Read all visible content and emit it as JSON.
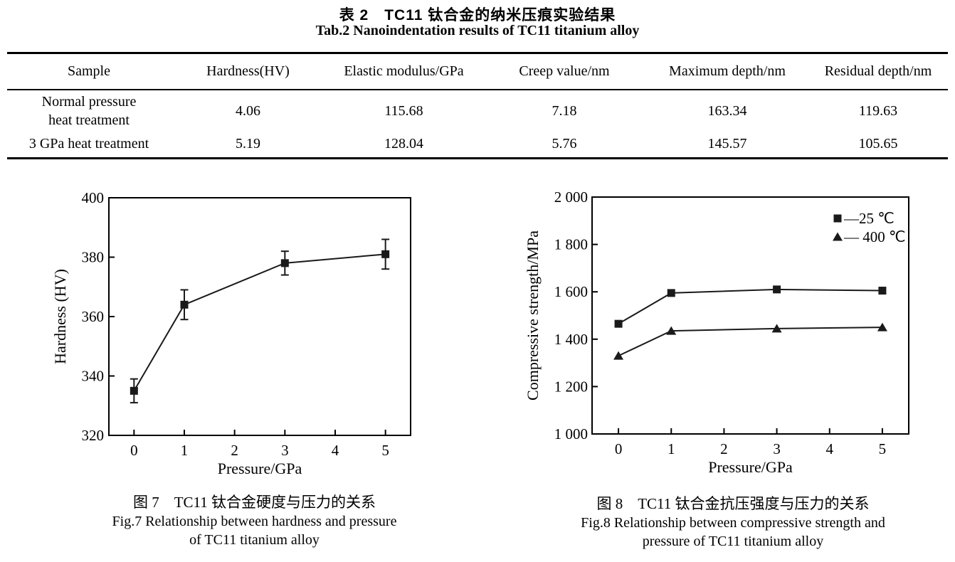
{
  "page": {
    "background": "#ffffff",
    "text_color": "#000000",
    "line_color": "#1a1a1a"
  },
  "table": {
    "title_zh": "表 2　TC11 钛合金的纳米压痕实验结果",
    "title_en": "Tab.2 Nanoindentation results of TC11 titanium alloy",
    "columns": [
      "Sample",
      "Hardness(HV)",
      "Elastic modulus/GPa",
      "Creep value/nm",
      "Maximum depth/nm",
      "Residual depth/nm"
    ],
    "rows": [
      {
        "sample": [
          "Normal pressure",
          "heat treatment"
        ],
        "values": [
          "4.06",
          "115.68",
          "7.18",
          "163.34",
          "119.63"
        ]
      },
      {
        "sample": [
          "3 GPa heat treatment"
        ],
        "values": [
          "5.19",
          "128.04",
          "5.76",
          "145.57",
          "105.65"
        ]
      }
    ]
  },
  "chart_data": [
    {
      "type": "line",
      "title": "",
      "xlabel": "Pressure/GPa",
      "ylabel": "Hardness (HV)",
      "xlim": [
        -0.5,
        5.5
      ],
      "ylim": [
        320,
        400
      ],
      "xticks": [
        0,
        1,
        2,
        3,
        4,
        5
      ],
      "yticks": [
        320,
        340,
        360,
        380,
        400
      ],
      "grid": false,
      "legend": null,
      "series": [
        {
          "name": "Hardness",
          "marker": "square",
          "color": "#1a1a1a",
          "x": [
            0,
            1,
            3,
            5
          ],
          "y": [
            335,
            364,
            378,
            381
          ],
          "yerr": [
            4,
            5,
            4,
            5
          ]
        }
      ]
    },
    {
      "type": "line",
      "title": "",
      "xlabel": "Pressure/GPa",
      "ylabel": "Compressive strength/MPa",
      "xlim": [
        -0.5,
        5.5
      ],
      "ylim": [
        1000,
        2000
      ],
      "xticks": [
        0,
        1,
        2,
        3,
        4,
        5
      ],
      "yticks": [
        1000,
        1200,
        1400,
        1600,
        1800,
        2000
      ],
      "ytick_labels": [
        "1 000",
        "1 200",
        "1 400",
        "1 600",
        "1 800",
        "2 000"
      ],
      "grid": false,
      "legend": {
        "position": "top-right",
        "items": [
          {
            "marker": "square",
            "label": "—25 ℃"
          },
          {
            "marker": "triangle",
            "label": "— 400 ℃"
          }
        ]
      },
      "series": [
        {
          "name": "25 ℃",
          "marker": "square",
          "color": "#1a1a1a",
          "x": [
            0,
            1,
            3,
            5
          ],
          "y": [
            1465,
            1595,
            1610,
            1605
          ]
        },
        {
          "name": "400 ℃",
          "marker": "triangle",
          "color": "#1a1a1a",
          "x": [
            0,
            1,
            3,
            5
          ],
          "y": [
            1330,
            1435,
            1445,
            1450
          ]
        }
      ]
    }
  ],
  "figures": [
    {
      "caption_zh": "图 7　TC11 钛合金硬度与压力的关系",
      "caption_en1": "Fig.7 Relationship between hardness and pressure",
      "caption_en2": "of TC11 titanium alloy"
    },
    {
      "caption_zh": "图 8　TC11 钛合金抗压强度与压力的关系",
      "caption_en1": "Fig.8 Relationship between compressive strength and",
      "caption_en2": "pressure of TC11 titanium alloy"
    }
  ]
}
